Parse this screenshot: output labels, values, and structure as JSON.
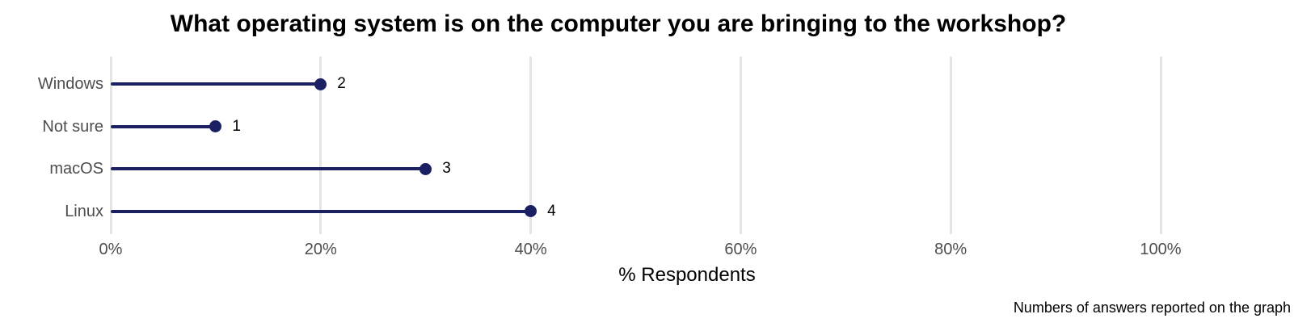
{
  "chart_data": {
    "type": "lollipop",
    "title": "What operating system is on the computer you are bringing to the workshop?",
    "categories": [
      "Windows",
      "Not sure",
      "macOS",
      "Linux"
    ],
    "series": [
      {
        "name": "% Respondents",
        "values_percent": [
          20,
          10,
          30,
          40
        ],
        "counts": [
          2,
          1,
          3,
          4
        ]
      }
    ],
    "xlabel": "% Respondents",
    "x_ticks": [
      "0%",
      "20%",
      "40%",
      "60%",
      "80%",
      "100%"
    ],
    "x_tick_values": [
      0,
      20,
      40,
      60,
      80,
      100
    ],
    "xlim": [
      0,
      110
    ],
    "grid": "vertical-only",
    "legend": "none",
    "caption": "Numbers of answers reported on the graph",
    "colors": {
      "stem": "#1b2063",
      "point": "#1b2063",
      "gridline": "#e4e4e4",
      "axis_text": "#4d4d4d",
      "title_text": "#000000",
      "value_text": "#000000",
      "background": "#ffffff"
    }
  }
}
